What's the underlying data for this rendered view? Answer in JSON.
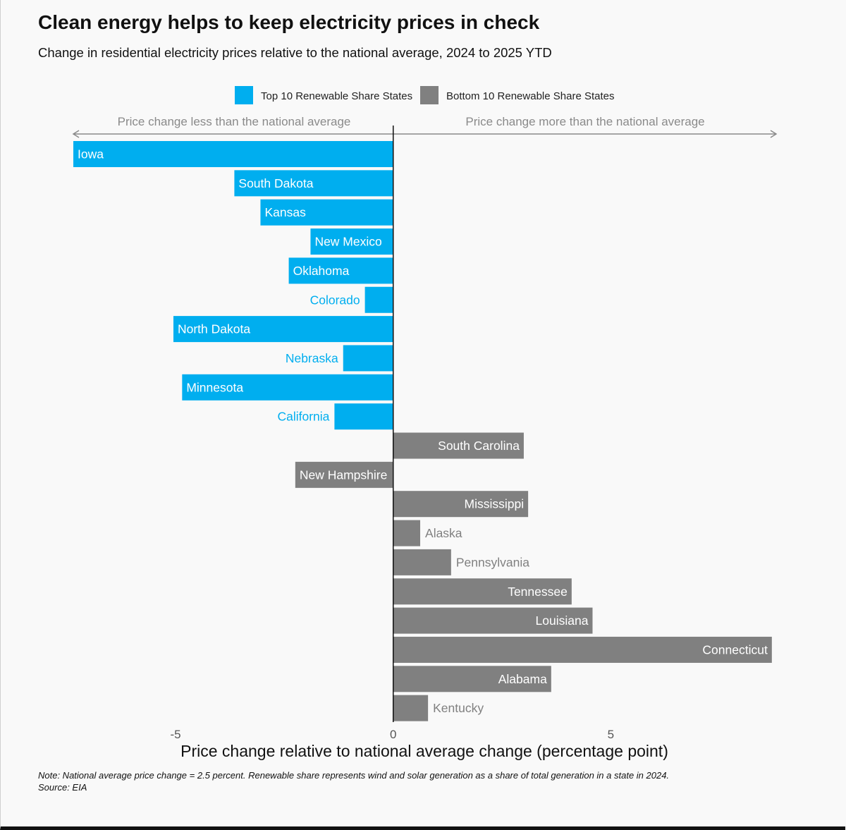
{
  "header": {
    "title": "Clean energy helps to keep electricity prices in check",
    "subtitle": "Change in residential electricity prices relative to the national average, 2024 to 2025 YTD"
  },
  "footer": {
    "note": "Note: National average price change = 2.5 percent. Renewable share represents wind and solar generation as a share of total generation in a state in 2024.",
    "source": "Source: EIA"
  },
  "chart_data": {
    "type": "bar",
    "orientation": "horizontal",
    "title": "Clean energy helps to keep electricity prices in check",
    "subtitle": "Change in residential electricity prices relative to the national average, 2024 to 2025 YTD",
    "xlabel": "Price change relative to national average change (percentage point)",
    "ylabel": "",
    "xlim": [
      -7.35,
      8.8
    ],
    "xticks": [
      -5,
      0,
      5
    ],
    "xtick_labels": [
      "-5",
      "0",
      "5"
    ],
    "grid": false,
    "legend_position": "top-center",
    "direction_labels": {
      "left": "Price change less than the national average",
      "right": "Price change more than the national average"
    },
    "series": [
      {
        "name": "Top 10 Renewable Share States",
        "color": "#00aeef",
        "label_color_outside": "#00aeef",
        "categories": [
          "Iowa",
          "South Dakota",
          "Kansas",
          "New Mexico",
          "Oklahoma",
          "Colorado",
          "North Dakota",
          "Nebraska",
          "Minnesota",
          "California"
        ],
        "values": [
          -7.35,
          -3.65,
          -3.05,
          -1.9,
          -2.4,
          -0.65,
          -5.05,
          -1.15,
          -4.85,
          -1.35
        ]
      },
      {
        "name": "Bottom 10 Renewable Share States",
        "color": "#808080",
        "label_color_outside": "#808080",
        "categories": [
          "South Carolina",
          "New Hampshire",
          "Mississippi",
          "Alaska",
          "Pennsylvania",
          "Tennessee",
          "Louisiana",
          "Connecticut",
          "Alabama",
          "Kentucky"
        ],
        "values": [
          3.0,
          -2.25,
          3.1,
          0.62,
          1.33,
          4.1,
          4.58,
          8.7,
          3.63,
          0.8
        ]
      }
    ]
  }
}
